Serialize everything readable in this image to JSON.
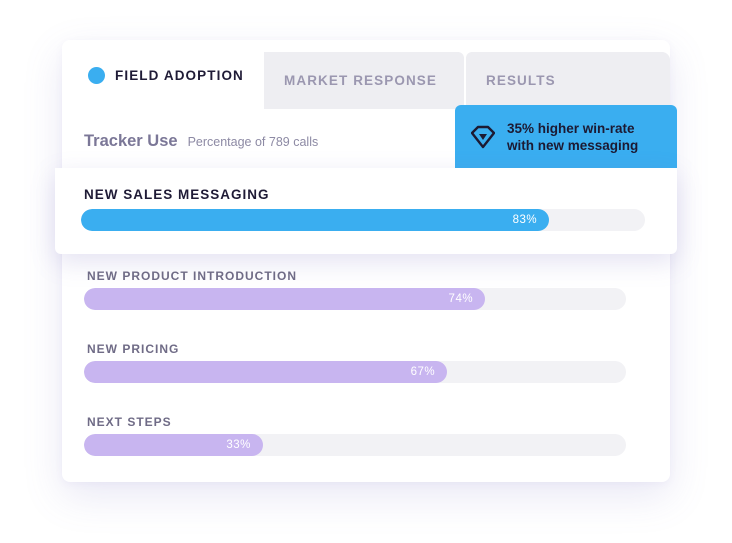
{
  "tabs": [
    {
      "label": "FIELD ADOPTION",
      "active": true
    },
    {
      "label": "MARKET RESPONSE",
      "active": false
    },
    {
      "label": "RESULTS",
      "active": false
    }
  ],
  "tracker": {
    "title": "Tracker Use",
    "subtitle": "Percentage of 789 calls"
  },
  "callout": {
    "line1": "35% higher win-rate",
    "line2": "with new messaging",
    "icon": "gem-icon"
  },
  "colors": {
    "accent": "#3aaef0",
    "purple": "#c8b5f0",
    "track": "#f2f2f5"
  },
  "bars": [
    {
      "label": "NEW SALES MESSAGING",
      "value": 83,
      "value_label": "83%"
    },
    {
      "label": "NEW PRODUCT INTRODUCTION",
      "value": 74,
      "value_label": "74%"
    },
    {
      "label": "NEW PRICING",
      "value": 67,
      "value_label": "67%"
    },
    {
      "label": "NEXT STEPS",
      "value": 33,
      "value_label": "33%"
    }
  ]
}
